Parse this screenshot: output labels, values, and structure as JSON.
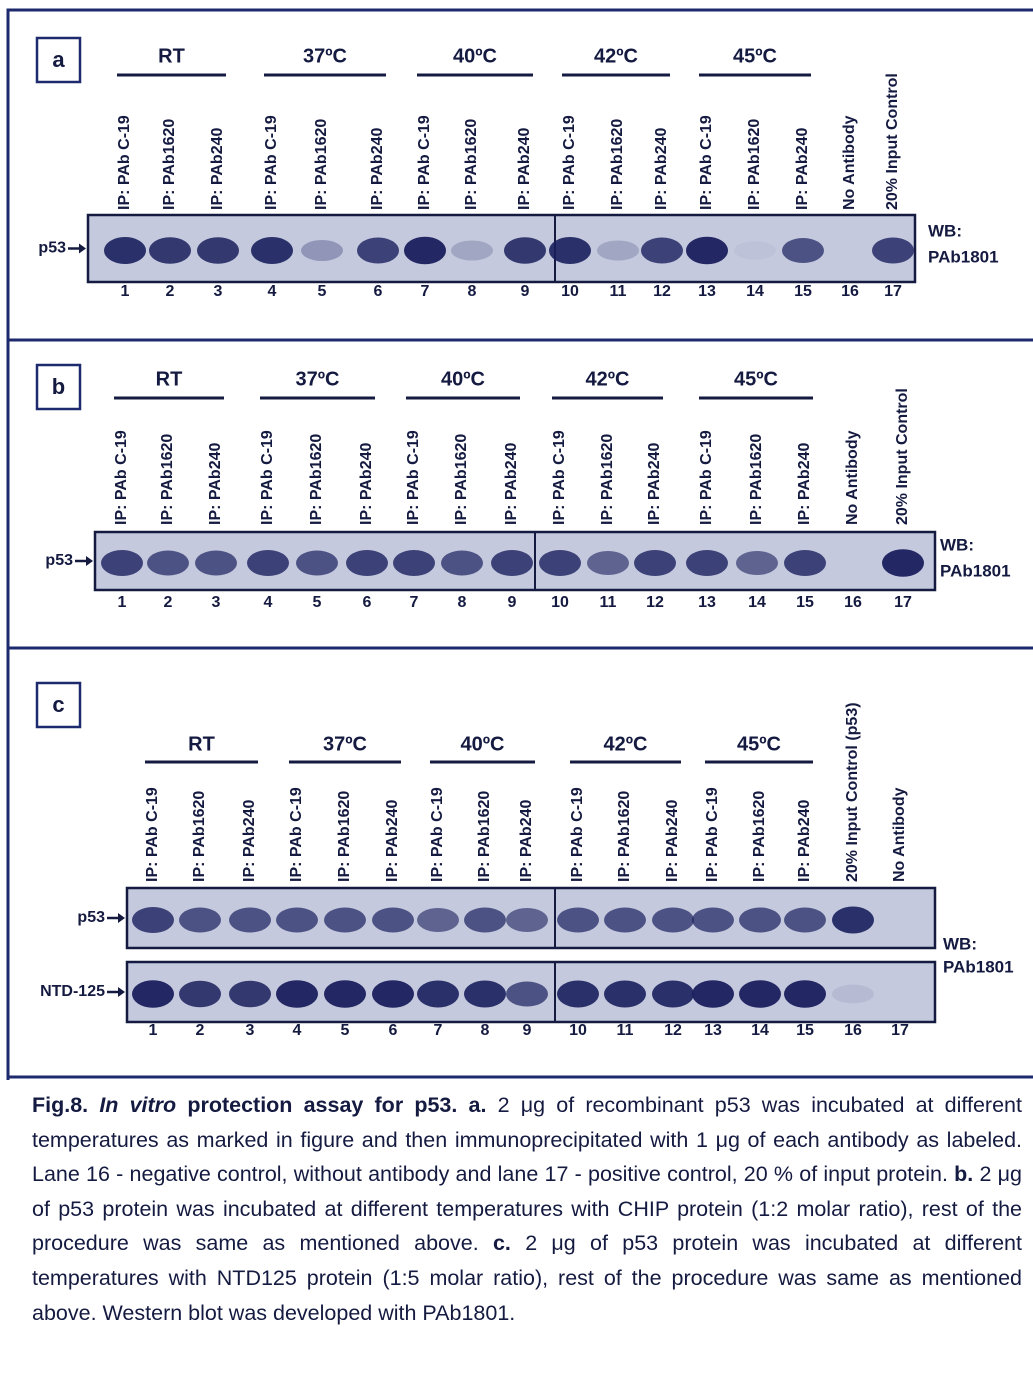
{
  "panels": [
    {
      "label": "a",
      "groups": [
        "RT",
        "37ºC",
        "40ºC",
        "42ºC",
        "45ºC"
      ],
      "lanes": [
        "IP: PAb C-19",
        "IP: PAb1620",
        "IP: PAb240",
        "IP: PAb C-19",
        "IP: PAb1620",
        "IP: PAb240",
        "IP: PAb C-19",
        "IP: PAb1620",
        "IP: PAb240",
        "IP: PAb C-19",
        "IP: PAb1620",
        "IP: PAb240",
        "IP: PAb C-19",
        "IP: PAb1620",
        "IP: PAb240",
        "No Antibody",
        "20% Input Control"
      ],
      "markers": [
        "p53"
      ],
      "lane_numbers": [
        1,
        2,
        3,
        4,
        5,
        6,
        7,
        8,
        9,
        10,
        11,
        12,
        13,
        14,
        15,
        16,
        17
      ],
      "wb": "WB:",
      "antibody": "PAb1801"
    },
    {
      "label": "b",
      "groups": [
        "RT",
        "37ºC",
        "40ºC",
        "42ºC",
        "45ºC"
      ],
      "lanes": [
        "IP: PAb C-19",
        "IP: PAb1620",
        "IP: PAb240",
        "IP: PAb C-19",
        "IP: PAb1620",
        "IP: PAb240",
        "IP: PAb C-19",
        "IP: PAb1620",
        "IP: PAb240",
        "IP: PAb C-19",
        "IP: PAb1620",
        "IP: PAb240",
        "IP: PAb C-19",
        "IP: PAb1620",
        "IP: PAb240",
        "No Antibody",
        "20% Input Control"
      ],
      "markers": [
        "p53"
      ],
      "lane_numbers": [
        1,
        2,
        3,
        4,
        5,
        6,
        7,
        8,
        9,
        10,
        11,
        12,
        13,
        14,
        15,
        16,
        17
      ],
      "wb": "WB:",
      "antibody": "PAb1801"
    },
    {
      "label": "c",
      "groups": [
        "RT",
        "37ºC",
        "40ºC",
        "42ºC",
        "45ºC"
      ],
      "lanes": [
        "IP: PAb C-19",
        "IP: PAb1620",
        "IP: PAb240",
        "IP: PAb C-19",
        "IP: PAb1620",
        "IP: PAb240",
        "IP: PAb C-19",
        "IP: PAb1620",
        "IP: PAb240",
        "IP: PAb C-19",
        "IP: PAb1620",
        "IP: PAb240",
        "IP: PAb C-19",
        "IP: PAb1620",
        "IP: PAb240",
        "20% Input Control (p53)",
        "No Antibody"
      ],
      "markers": [
        "p53",
        "NTD-125"
      ],
      "lane_numbers": [
        1,
        2,
        3,
        4,
        5,
        6,
        7,
        8,
        9,
        10,
        11,
        12,
        13,
        14,
        15,
        16,
        17
      ],
      "wb": "WB:",
      "antibody": "PAb1801"
    }
  ],
  "caption": {
    "parts": [
      "Fig.8.",
      "In vitro",
      "protection assay for p53.",
      "a.",
      "2 μg of recombinant p53 was incubated at different temperatures as marked in figure and then immunoprecipitated with 1 μg of each antibody as labeled. Lane 16 - negative control, without antibody and lane 17 - positive control, 20 % of input protein.",
      "b.",
      "2 μg of p53 protein was incubated at different temperatures with CHIP protein (1:2 molar ratio), rest of the procedure was same as mentioned above.",
      "c.",
      "2 μg of p53 protein was incubated at different temperatures with NTD125 protein (1:5 molar ratio), rest of the procedure was same as mentioned above. Western blot was developed with PAb1801."
    ]
  }
}
